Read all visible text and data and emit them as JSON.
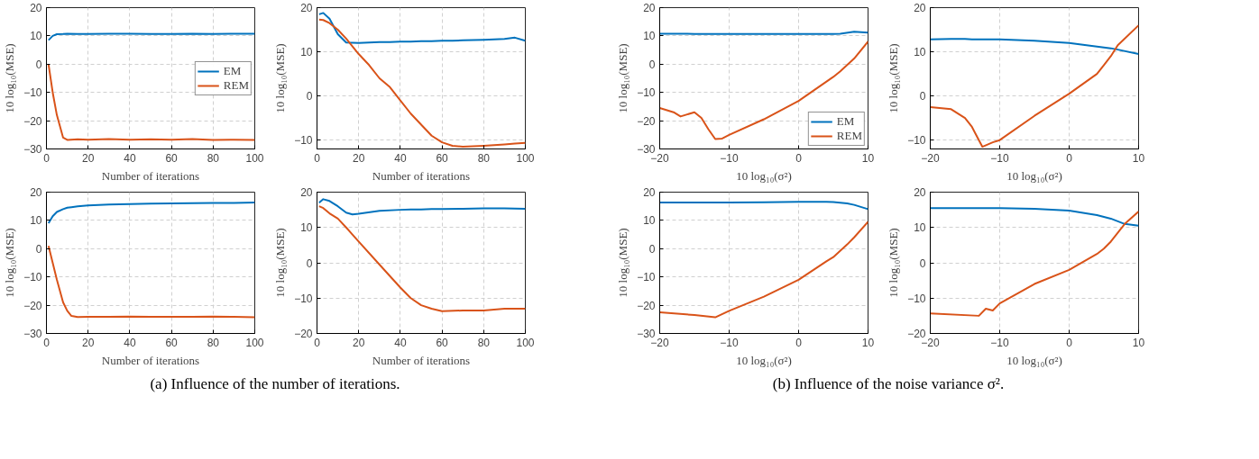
{
  "chart_data": [
    {
      "type": "line",
      "xlabel": "Number of iterations",
      "ylabel": "10 log₁₀(MSE)",
      "xlim": [
        0,
        100
      ],
      "xticks": [
        0,
        20,
        40,
        60,
        80,
        100
      ],
      "ylim": [
        -30,
        20
      ],
      "yticks": [
        -30,
        -20,
        -10,
        0,
        10,
        20
      ],
      "grid": true,
      "legend": "right",
      "x": [
        1,
        3,
        5,
        8,
        10,
        15,
        20,
        30,
        40,
        50,
        60,
        70,
        80,
        90,
        100
      ],
      "series": [
        {
          "name": "EM",
          "color": "#0072bd",
          "values": [
            8.5,
            10,
            10.6,
            10.7,
            10.8,
            10.7,
            10.7,
            10.8,
            10.8,
            10.7,
            10.7,
            10.8,
            10.7,
            10.8,
            10.8
          ]
        },
        {
          "name": "REM",
          "color": "#d95319",
          "values": [
            0,
            -10,
            -18,
            -26,
            -26.8,
            -26.6,
            -26.7,
            -26.5,
            -26.7,
            -26.6,
            -26.7,
            -26.5,
            -26.8,
            -26.7,
            -26.8
          ]
        }
      ]
    },
    {
      "type": "line",
      "xlabel": "Number of iterations",
      "ylabel": "10 log₁₀(MSE)",
      "xlim": [
        0,
        100
      ],
      "xticks": [
        0,
        20,
        40,
        60,
        80,
        100
      ],
      "ylim": [
        -12,
        20
      ],
      "yticks": [
        -10,
        0,
        10,
        20
      ],
      "grid": true,
      "x": [
        1,
        3,
        6,
        10,
        14,
        20,
        25,
        30,
        35,
        40,
        45,
        50,
        55,
        60,
        65,
        70,
        80,
        90,
        95,
        100
      ],
      "series": [
        {
          "color": "#0072bd",
          "values": [
            18.5,
            18.8,
            17.5,
            14,
            12.1,
            12,
            12.1,
            12.2,
            12.2,
            12.3,
            12.3,
            12.4,
            12.4,
            12.5,
            12.5,
            12.6,
            12.7,
            12.9,
            13.2,
            12.5
          ]
        },
        {
          "color": "#d95319",
          "values": [
            17.3,
            17.2,
            16.5,
            15,
            13,
            9.5,
            7,
            4,
            2,
            -1,
            -4,
            -6.5,
            -9,
            -10.5,
            -11.3,
            -11.5,
            -11.3,
            -11,
            -10.8,
            -10.6
          ]
        }
      ]
    },
    {
      "type": "line",
      "xlabel": "Number of iterations",
      "ylabel": "10 log₁₀(MSE)",
      "xlim": [
        0,
        100
      ],
      "xticks": [
        0,
        20,
        40,
        60,
        80,
        100
      ],
      "ylim": [
        -30,
        20
      ],
      "yticks": [
        -30,
        -20,
        -10,
        0,
        10,
        20
      ],
      "grid": true,
      "x": [
        1,
        3,
        5,
        8,
        10,
        12,
        15,
        20,
        30,
        40,
        50,
        60,
        70,
        80,
        90,
        100
      ],
      "series": [
        {
          "color": "#0072bd",
          "values": [
            9,
            11.5,
            13,
            14,
            14.5,
            14.7,
            15,
            15.3,
            15.6,
            15.8,
            15.9,
            16,
            16.1,
            16.2,
            16.2,
            16.3
          ]
        },
        {
          "color": "#d95319",
          "values": [
            1,
            -5,
            -11,
            -19,
            -22,
            -23.8,
            -24.2,
            -24.1,
            -24.1,
            -24,
            -24.1,
            -24.1,
            -24.1,
            -24,
            -24.1,
            -24.3
          ]
        }
      ],
      "annotations": [
        "(a) Influence of the number of iterations."
      ]
    },
    {
      "type": "line",
      "xlabel": "Number of iterations",
      "ylabel": "10 log₁₀(MSE)",
      "xlim": [
        0,
        100
      ],
      "xticks": [
        0,
        20,
        40,
        60,
        80,
        100
      ],
      "ylim": [
        -20,
        20
      ],
      "yticks": [
        -20,
        -10,
        0,
        10,
        20
      ],
      "grid": true,
      "x": [
        1,
        3,
        6,
        10,
        14,
        17,
        20,
        30,
        40,
        45,
        50,
        55,
        60,
        70,
        80,
        90,
        100
      ],
      "series": [
        {
          "color": "#0072bd",
          "values": [
            17,
            18,
            17.5,
            16,
            14.2,
            13.7,
            13.9,
            14.7,
            15,
            15.1,
            15.1,
            15.2,
            15.2,
            15.3,
            15.4,
            15.4,
            15.3
          ]
        },
        {
          "color": "#d95319",
          "values": [
            16,
            15.5,
            14,
            12.5,
            10,
            8,
            6,
            -0.5,
            -7,
            -10,
            -12,
            -13,
            -13.7,
            -13.5,
            -13.5,
            -13,
            -13
          ]
        }
      ]
    },
    {
      "type": "line",
      "xlabel": "10 log₁₀(σ²)",
      "ylabel": "10 log₁₀(MSE)",
      "xlim": [
        -20,
        10
      ],
      "xticks": [
        -20,
        -10,
        0,
        10
      ],
      "ylim": [
        -30,
        20
      ],
      "yticks": [
        -30,
        -20,
        -10,
        0,
        10,
        20
      ],
      "grid": true,
      "legend": "bottom right",
      "x": [
        -20,
        -18,
        -17,
        -15,
        -14,
        -13,
        -12,
        -11,
        -10,
        -5,
        0,
        5,
        6,
        8,
        10
      ],
      "series": [
        {
          "name": "EM",
          "color": "#0072bd",
          "values": [
            10.8,
            10.8,
            10.8,
            10.7,
            10.7,
            10.7,
            10.7,
            10.7,
            10.7,
            10.7,
            10.7,
            10.7,
            10.8,
            11.5,
            11.2
          ]
        },
        {
          "name": "REM",
          "color": "#d95319",
          "values": [
            -15.5,
            -17,
            -18.5,
            -17,
            -19,
            -23,
            -26.5,
            -26.3,
            -25,
            -19.5,
            -13,
            -4.5,
            -2.5,
            2,
            8
          ]
        }
      ]
    },
    {
      "type": "line",
      "xlabel": "10 log₁₀(σ²)",
      "ylabel": "10 log₁₀(MSE)",
      "xlim": [
        -20,
        10
      ],
      "xticks": [
        -20,
        -10,
        0,
        10
      ],
      "ylim": [
        -12,
        20
      ],
      "yticks": [
        -10,
        0,
        10,
        20
      ],
      "grid": true,
      "x": [
        -20,
        -17,
        -15,
        -14,
        -13,
        -12.5,
        -11,
        -10,
        -5,
        0,
        4,
        5,
        6,
        7,
        10
      ],
      "series": [
        {
          "color": "#0072bd",
          "values": [
            12.8,
            12.9,
            12.9,
            12.8,
            12.8,
            12.8,
            12.8,
            12.8,
            12.5,
            12,
            11.2,
            11,
            10.8,
            10.5,
            9.5
          ]
        },
        {
          "color": "#d95319",
          "values": [
            -2.5,
            -3,
            -5,
            -7,
            -10,
            -11.5,
            -10.5,
            -10,
            -4.5,
            0.5,
            5,
            7,
            9,
            11.5,
            16
          ]
        }
      ]
    },
    {
      "type": "line",
      "xlabel": "10 log₁₀(σ²)",
      "ylabel": "10 log₁₀(MSE)",
      "xlim": [
        -20,
        10
      ],
      "xticks": [
        -20,
        -10,
        0,
        10
      ],
      "ylim": [
        -30,
        20
      ],
      "yticks": [
        -30,
        -20,
        -10,
        0,
        10,
        20
      ],
      "grid": true,
      "x": [
        -20,
        -15,
        -12,
        -10,
        -5,
        0,
        4,
        5,
        7,
        8,
        10
      ],
      "series": [
        {
          "color": "#0072bd",
          "values": [
            16.3,
            16.3,
            16.3,
            16.3,
            16.4,
            16.6,
            16.6,
            16.5,
            16,
            15.5,
            14
          ]
        },
        {
          "color": "#d95319",
          "values": [
            -22.5,
            -23.5,
            -24.3,
            -22,
            -17,
            -11,
            -4.5,
            -3,
            1.5,
            4,
            9.5
          ]
        }
      ]
    },
    {
      "type": "line",
      "xlabel": "10 log₁₀(σ²)",
      "ylabel": "10 log₁₀(MSE)",
      "xlim": [
        -20,
        10
      ],
      "xticks": [
        -20,
        -10,
        0,
        10
      ],
      "ylim": [
        -20,
        20
      ],
      "yticks": [
        -20,
        -10,
        0,
        10,
        20
      ],
      "grid": true,
      "x": [
        -20,
        -13,
        -12,
        -11,
        -10,
        -5,
        0,
        4,
        5,
        6,
        8,
        10
      ],
      "series": [
        {
          "color": "#0072bd",
          "values": [
            15.5,
            15.5,
            15.5,
            15.5,
            15.5,
            15.3,
            14.8,
            13.5,
            13,
            12.5,
            11,
            10.5
          ]
        },
        {
          "color": "#d95319",
          "values": [
            -14.3,
            -15,
            -13,
            -13.5,
            -11.5,
            -6,
            -2,
            2.5,
            4,
            6,
            11,
            14.5
          ]
        }
      ],
      "annotations": [
        "(b) Influence of the noise variance σ²."
      ]
    }
  ]
}
